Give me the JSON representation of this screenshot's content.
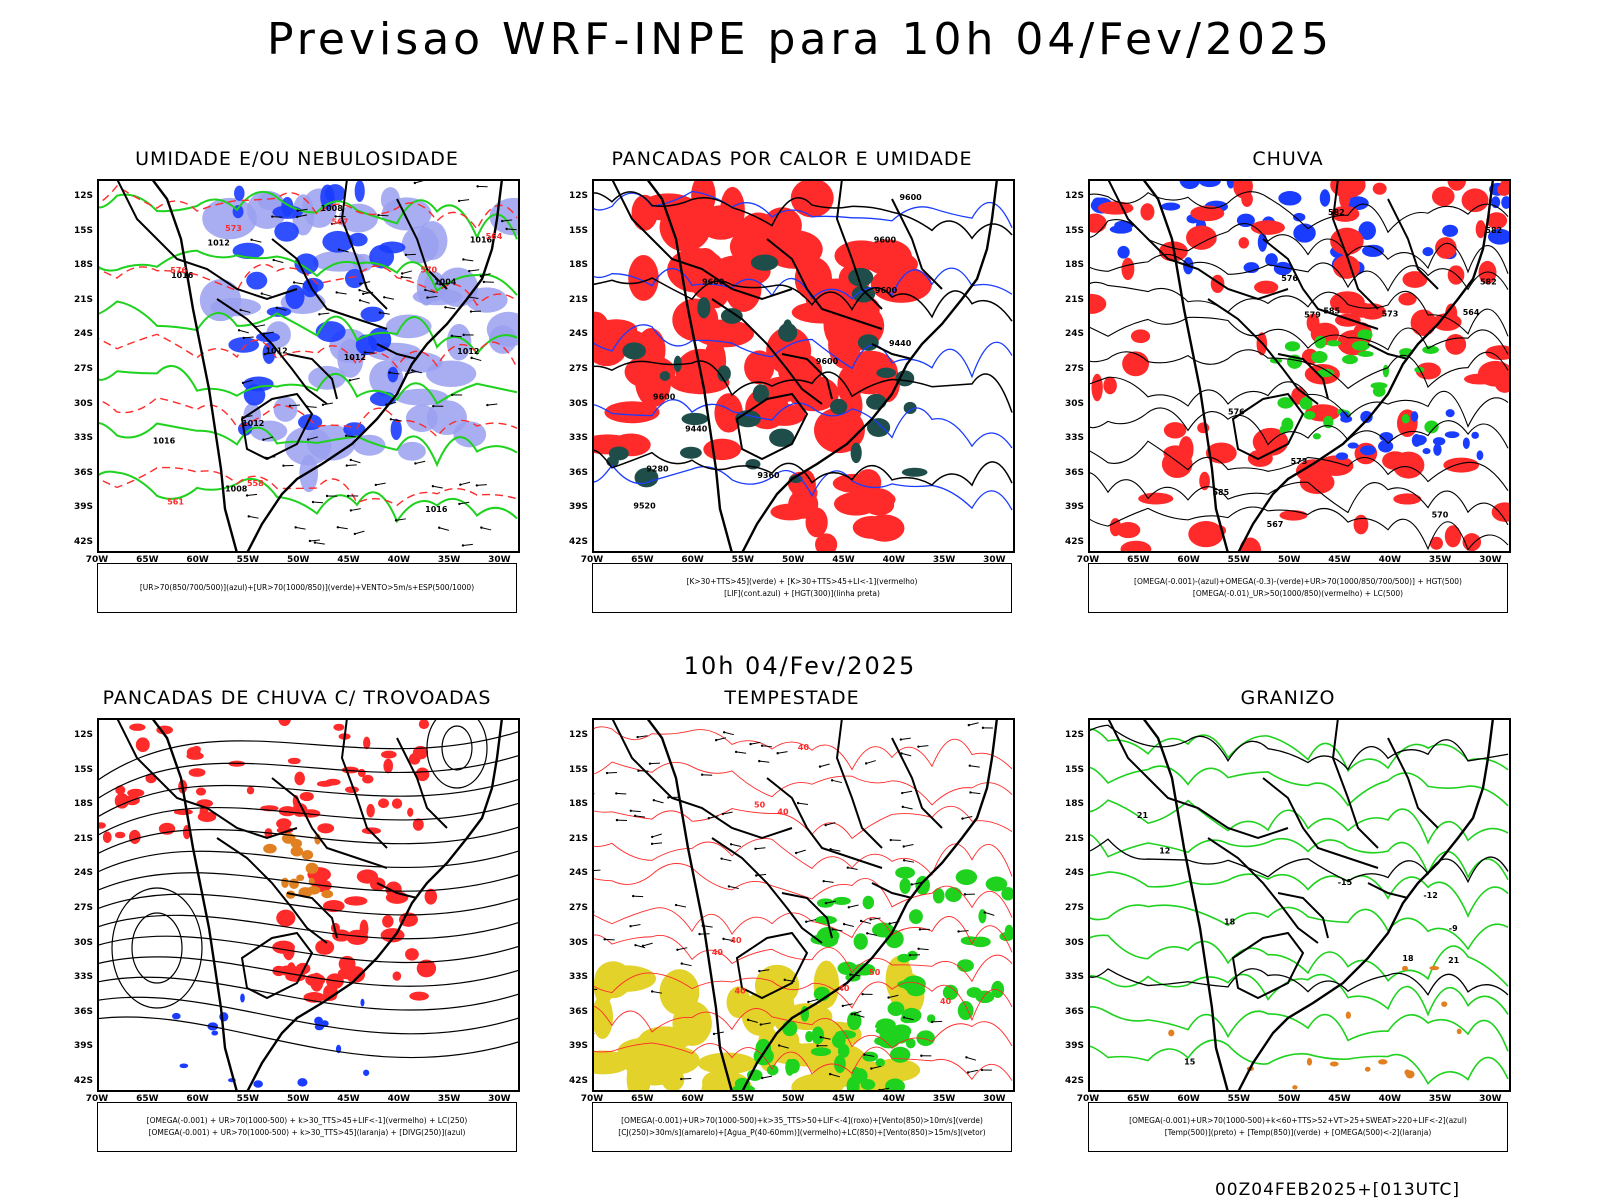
{
  "title": "Previsao WRF-INPE  para 10h 04/Fev/2025",
  "mid_title": "10h 04/Fev/2025",
  "footer": "00Z04FEB2025+[013UTC]",
  "axes": {
    "lat": [
      "12S",
      "15S",
      "18S",
      "21S",
      "24S",
      "27S",
      "30S",
      "33S",
      "36S",
      "39S",
      "42S"
    ],
    "lon": [
      "70W",
      "65W",
      "60W",
      "55W",
      "50W",
      "45W",
      "40W",
      "35W",
      "30W"
    ]
  },
  "colors": {
    "blue": "#1a3cff",
    "green": "#1ed21e",
    "red": "#ff2a2a",
    "lightblue": "#9aa0f0",
    "orange": "#e08020",
    "yellow": "#e2d22a",
    "darkteal": "#1f4e4a"
  },
  "panels": [
    {
      "title": "UMIDADE E/OU NEBULOSIDADE",
      "legend": [
        "[UR>70(850/700/500)](azul)+[UR>70(1000/850)](verde)+VENTO>5m/s+ESP(500/1000)"
      ],
      "labels": [
        "1012",
        "1012",
        "1012",
        "1016",
        "1016",
        "1016",
        "1012",
        "1008",
        "1012",
        "1016",
        "570",
        "573",
        "576",
        "564",
        "558",
        "567",
        "561",
        "1004",
        "1008"
      ]
    },
    {
      "title": "PANCADAS POR CALOR E UMIDADE",
      "legend": [
        "[K>30+TTS>45](verde) + [K>30+TTS>45+LI<-1](vermelho)",
        "[LIF](cont.azul) + [HGT(300)](linha preta)"
      ],
      "labels": [
        "9600",
        "9600",
        "9600",
        "9600",
        "9600",
        "9440",
        "9520",
        "9360",
        "9280",
        "9440",
        "9600"
      ]
    },
    {
      "title": "CHUVA",
      "legend": [
        "[OMEGA(-0.001)-(azul)+OMEGA(-0.3)-(verde)+UR>70(1000/850/700/500)] + HGT(500)",
        "[OMEGA(-0.01)_UR>50(1000/850)(vermelho) + LC(500)"
      ],
      "labels": [
        "585",
        "582",
        "582",
        "585",
        "582",
        "576",
        "579",
        "573",
        "570",
        "576",
        "567",
        "564",
        "573"
      ]
    },
    {
      "title": "PANCADAS DE CHUVA C/ TROVOADAS",
      "legend": [
        "[OMEGA(-0.001) + UR>70(1000-500) + k>30_TTS>45+LIF<-1](vermelho) + LC(250)",
        "[OMEGA(-0.001) + UR>70(1000-500) + k>30_TTS>45](laranja) + [DIVG(250)](azul)"
      ],
      "labels": []
    },
    {
      "title": "TEMPESTADE",
      "legend": [
        "[OMEGA(-0.001)+UR>70(1000-500)+k>35_TTS>50+LIF<-4](roxo)+[Vento(850)>10m/s](verde)",
        "[CJ(250)>30m/s](amarelo)+[Agua_P(40-60mm)](vermelho)+LC(850)+[Vento(850)>15m/s](vetor)"
      ],
      "labels": [
        "40",
        "40",
        "40",
        "40",
        "40",
        "40",
        "40",
        "50",
        "50"
      ]
    },
    {
      "title": "GRANIZO",
      "legend": [
        "[OMEGA(-0.001)+UR>70(1000-500)+k<60+TTS>52+VT>25+SWEAT>220+LIF<-2](azul)",
        "[Temp(500)](preto) + [Temp(850)](verde) + [OMEGA(500)<-2](laranja)"
      ],
      "labels": [
        "-12",
        "-15",
        "-9",
        "15",
        "18",
        "21",
        "21",
        "18",
        "12"
      ]
    }
  ]
}
